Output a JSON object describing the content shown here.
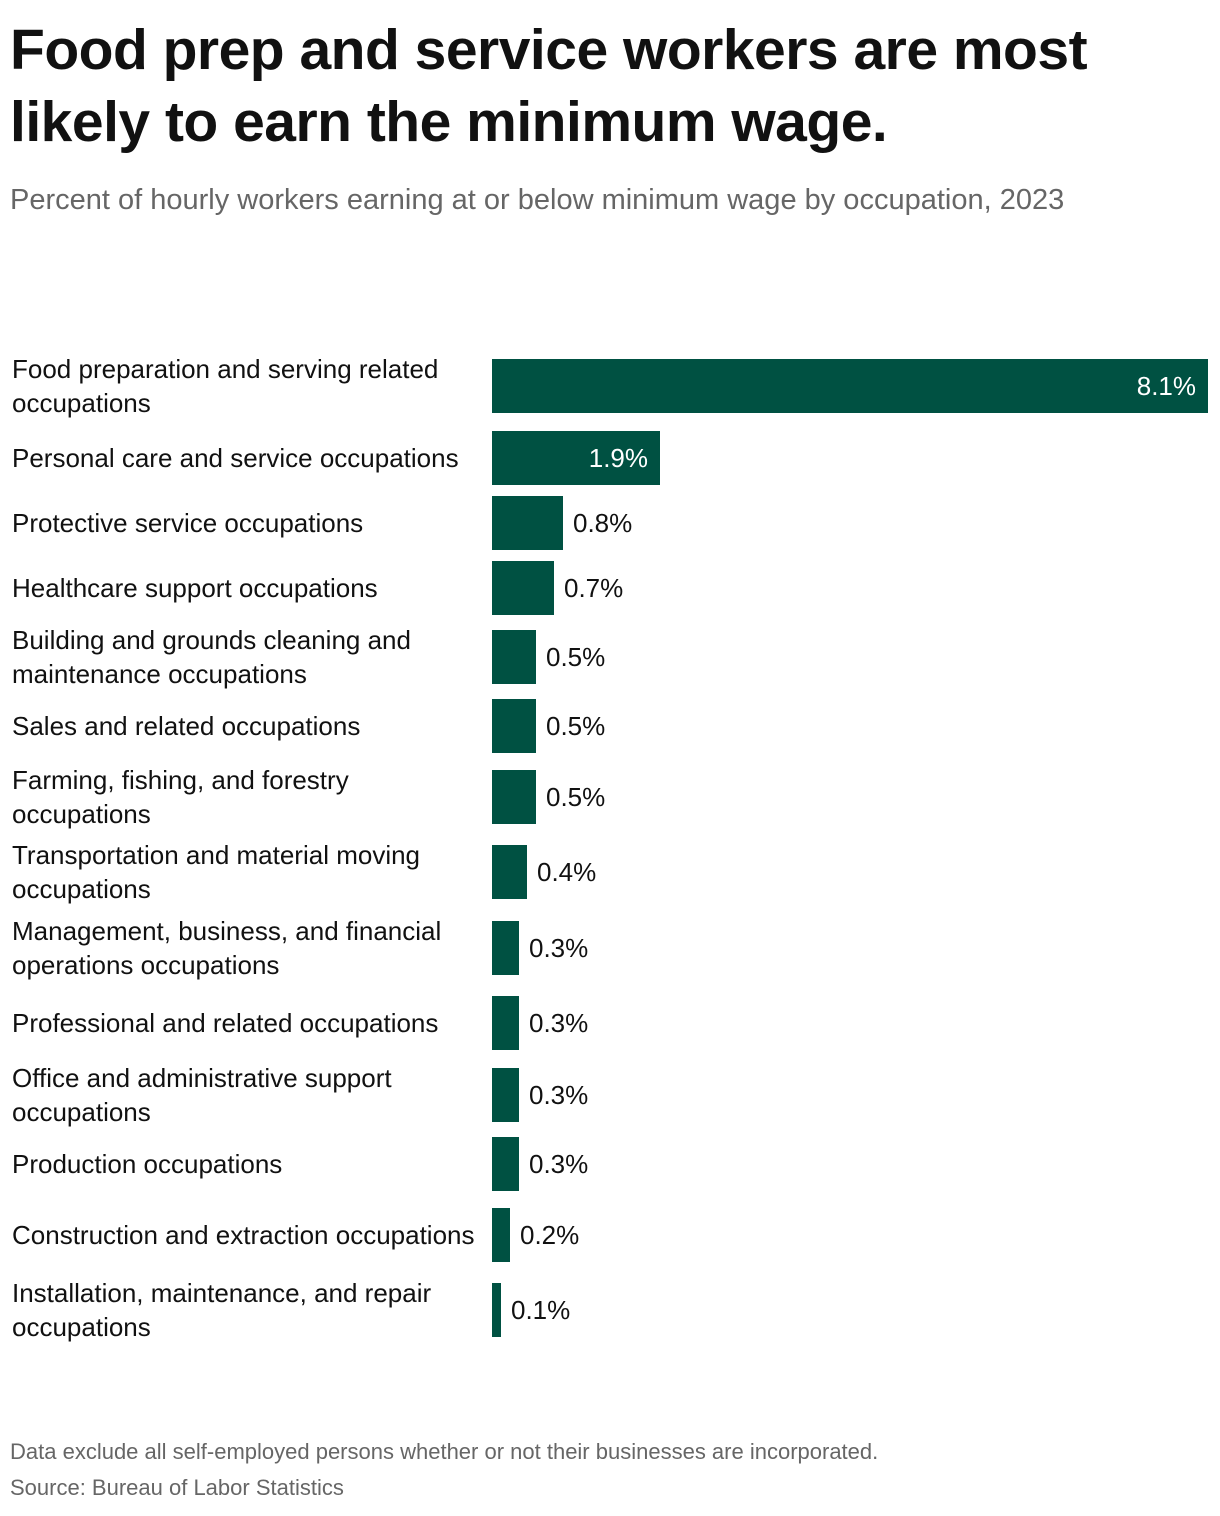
{
  "title": "Food prep and service workers are most likely to earn the minimum wage.",
  "subtitle": "Percent of hourly workers earning at or below minimum wage by occupation, 2023",
  "note": "Data exclude all self-employed persons whether or not their businesses are incorporated.",
  "source": "Source: Bureau of Labor Statistics",
  "colors": {
    "bar": "#005142",
    "label_inside": "#ffffff",
    "label_outside": "#111111"
  },
  "chart_data": {
    "type": "bar",
    "orientation": "horizontal",
    "title": "Food prep and service workers are most likely to earn the minimum wage.",
    "subtitle": "Percent of hourly workers earning at or below minimum wage by occupation, 2023",
    "categories": [
      "Food preparation and serving related occupations",
      "Personal care and service occupations",
      "Protective service occupations",
      "Healthcare support occupations",
      "Building and grounds cleaning and maintenance occupations",
      "Sales and related occupations",
      "Farming, fishing, and forestry occupations",
      "Transportation and material moving occupations",
      "Management, business, and financial operations occupations",
      "Professional and related occupations",
      "Office and administrative support occupations",
      "Production occupations",
      "Construction and extraction occupations",
      "Installation, maintenance, and repair occupations"
    ],
    "values": [
      8.1,
      1.9,
      0.8,
      0.7,
      0.5,
      0.5,
      0.5,
      0.4,
      0.3,
      0.3,
      0.3,
      0.3,
      0.2,
      0.1
    ],
    "value_labels": [
      "8.1%",
      "1.9%",
      "0.8%",
      "0.7%",
      "0.5%",
      "0.5%",
      "0.5%",
      "0.4%",
      "0.3%",
      "0.3%",
      "0.3%",
      "0.3%",
      "0.2%",
      "0.1%"
    ],
    "xlim": [
      0,
      8.1
    ],
    "xlabel": "",
    "ylabel": "",
    "grid": false,
    "legend": "none"
  }
}
